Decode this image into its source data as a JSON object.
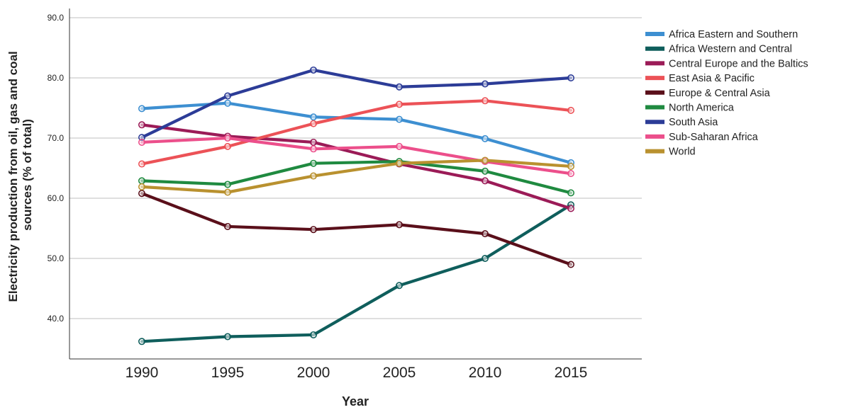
{
  "chart_data": {
    "type": "line",
    "title": "",
    "xlabel": "Year",
    "ylabel_lines": [
      "Electricity  production  from oil,  gas  and  coal",
      "sources (% of total)"
    ],
    "x": [
      1990,
      1995,
      2000,
      2005,
      2010,
      2015
    ],
    "x_tick_labels": [
      "1990",
      "1995",
      "2000",
      "2005",
      "2010",
      "2015"
    ],
    "ylim": [
      33,
      92
    ],
    "y_ticks": [
      40,
      50,
      60,
      70,
      80,
      90
    ],
    "y_tick_labels": [
      "40.0",
      "50.0",
      "60.0",
      "70.0",
      "80.0",
      "90.0"
    ],
    "grid": "horizontal",
    "legend_position": "right",
    "series": [
      {
        "name": "Africa Eastern and Southern",
        "color": "#3d8fd1",
        "values": [
          74.9,
          75.8,
          73.5,
          73.1,
          69.9,
          65.9
        ]
      },
      {
        "name": "Africa Western and Central",
        "color": "#0f5e5c",
        "values": [
          36.2,
          37.0,
          37.3,
          45.5,
          50.0,
          58.9
        ]
      },
      {
        "name": "Central Europe and the Baltics",
        "color": "#9b1b57",
        "values": [
          72.2,
          70.3,
          69.3,
          65.7,
          62.9,
          58.3
        ]
      },
      {
        "name": "East Asia & Pacific",
        "color": "#ec5257",
        "values": [
          65.7,
          68.6,
          72.4,
          75.6,
          76.2,
          74.6
        ]
      },
      {
        "name": "Europe & Central Asia",
        "color": "#5a0f1a",
        "values": [
          60.8,
          55.3,
          54.8,
          55.6,
          54.1,
          49.0
        ]
      },
      {
        "name": "North America",
        "color": "#1f8a40",
        "values": [
          62.9,
          62.3,
          65.8,
          66.1,
          64.5,
          60.9
        ]
      },
      {
        "name": "South Asia",
        "color": "#2c3c97",
        "values": [
          70.1,
          77.0,
          81.3,
          78.5,
          79.0,
          80.0
        ]
      },
      {
        "name": "Sub-Saharan Africa",
        "color": "#ec4f8b",
        "values": [
          69.3,
          70.0,
          68.2,
          68.6,
          66.1,
          64.1
        ]
      },
      {
        "name": "World",
        "color": "#b9912f",
        "values": [
          61.9,
          61.0,
          63.7,
          65.8,
          66.3,
          65.3
        ]
      }
    ]
  }
}
